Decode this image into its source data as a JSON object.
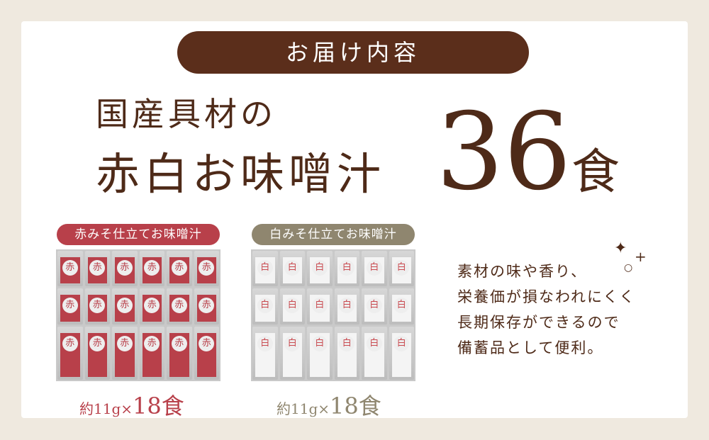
{
  "title": "お届け内容",
  "headline_line1": "国産具材の",
  "headline_line2": "赤白お味噌汁",
  "total_number": "36",
  "total_unit": "食",
  "products": [
    {
      "label": "赤みそ仕立てお味噌汁",
      "pack_char": "赤",
      "qty_prefix": "約11g×",
      "qty_number": "18",
      "qty_unit": "食",
      "color": "#b8404a"
    },
    {
      "label": "白みそ仕立てお味噌汁",
      "pack_char": "白",
      "qty_prefix": "約11g×",
      "qty_number": "18",
      "qty_unit": "食",
      "color": "#8f866f"
    }
  ],
  "description": [
    "素材の味や香り、",
    "栄養価が損なわれにくく",
    "長期保存ができるので",
    "備蓄品として便利。"
  ],
  "colors": {
    "brown": "#5b2e1b",
    "red": "#b8404a",
    "gray": "#8f866f",
    "background": "#efe9df"
  }
}
